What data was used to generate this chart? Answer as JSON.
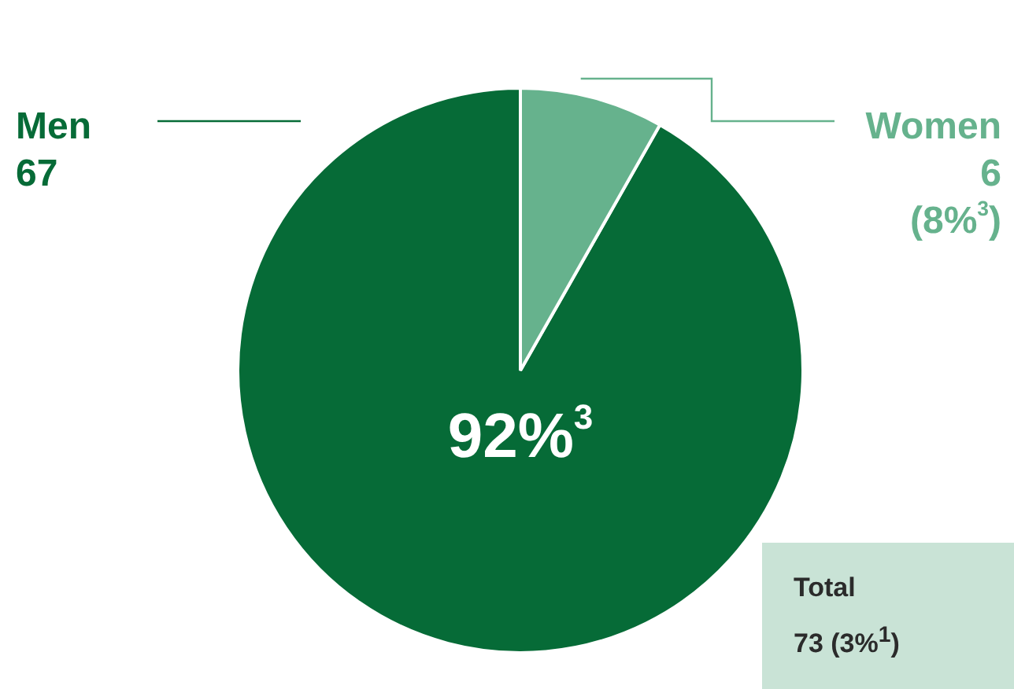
{
  "chart_data": {
    "type": "pie",
    "categories": [
      "Men",
      "Women"
    ],
    "values": [
      67,
      6
    ],
    "colors": [
      "#066b37",
      "#66b28d"
    ],
    "value_labels": [
      "67",
      "6 (8%$^{3}$)"
    ],
    "annotations": [
      "92%$^{3}$",
      "Total",
      "73 (3%$^{1}$)"
    ]
  }
}
